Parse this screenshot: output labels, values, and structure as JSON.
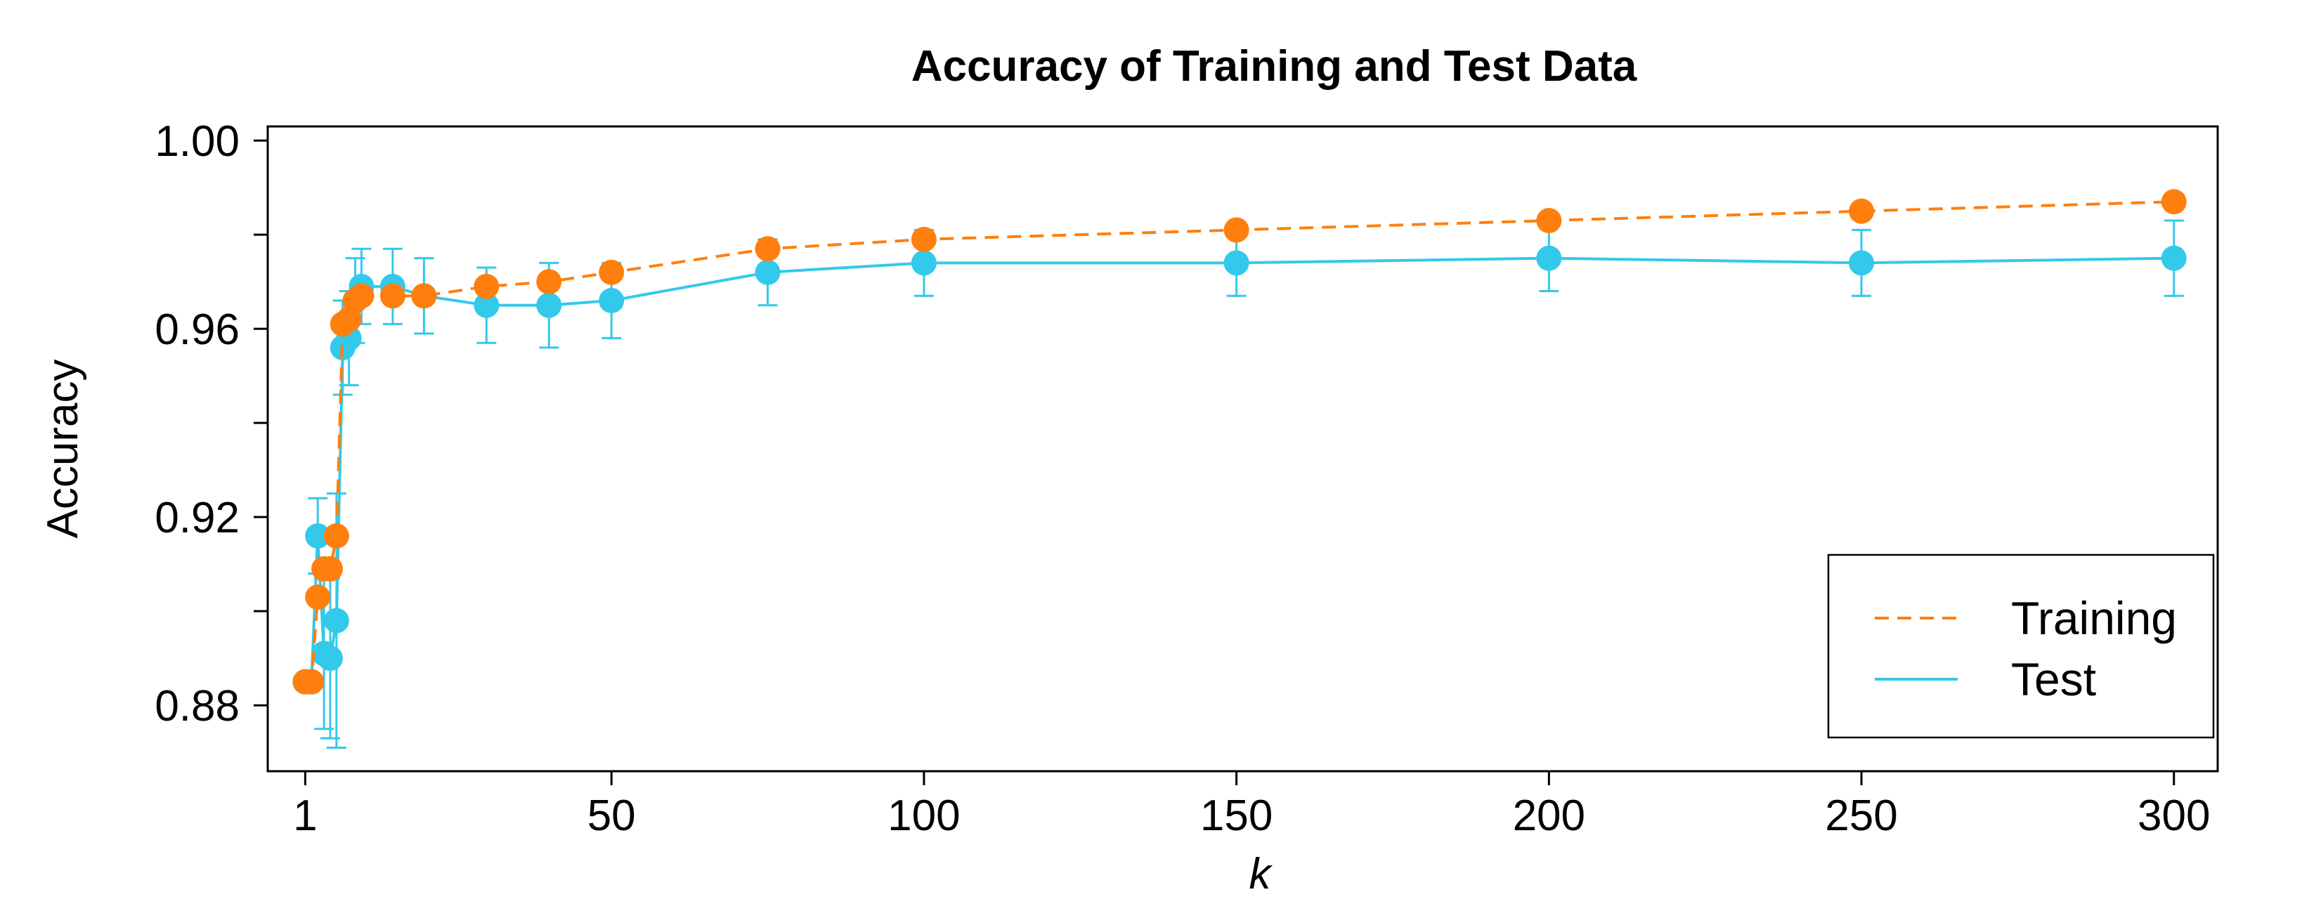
{
  "chart_data": {
    "type": "line",
    "title": "Accuracy of Training and Test Data",
    "xlabel": "k",
    "ylabel": "Accuracy",
    "xlim": [
      -5,
      307
    ],
    "ylim": [
      0.866,
      1.003
    ],
    "xticks": [
      1,
      50,
      100,
      150,
      200,
      250,
      300
    ],
    "xtick_labels": [
      "1",
      "50",
      "100",
      "150",
      "200",
      "250",
      "300"
    ],
    "yticks": [
      0.86,
      0.88,
      0.9,
      0.92,
      0.94,
      0.96,
      0.98,
      1.0
    ],
    "ytick_labels": [
      "",
      "0.88",
      "",
      "0.92",
      "",
      "0.96",
      "",
      "1.00"
    ],
    "legend_position": "bottom-right",
    "series": [
      {
        "name": "Training",
        "color": "#FF7F0E",
        "line_style": "dashed",
        "x": [
          1,
          2,
          3,
          4,
          5,
          6,
          7,
          8,
          9,
          10,
          15,
          20,
          30,
          40,
          50,
          75,
          100,
          150,
          200,
          250,
          300
        ],
        "y": [
          0.885,
          0.885,
          0.903,
          0.909,
          0.909,
          0.916,
          0.961,
          0.962,
          0.966,
          0.967,
          0.967,
          0.967,
          0.969,
          0.97,
          0.972,
          0.977,
          0.979,
          0.981,
          0.983,
          0.985,
          0.987
        ]
      },
      {
        "name": "Test",
        "color": "#33C9EB",
        "line_style": "solid",
        "x": [
          1,
          2,
          3,
          4,
          5,
          6,
          7,
          8,
          9,
          10,
          15,
          20,
          30,
          40,
          50,
          75,
          100,
          150,
          200,
          250,
          300
        ],
        "y": [
          0.885,
          0.885,
          0.916,
          0.891,
          0.89,
          0.898,
          0.956,
          0.958,
          0.966,
          0.969,
          0.969,
          0.967,
          0.965,
          0.965,
          0.966,
          0.972,
          0.974,
          0.974,
          0.975,
          0.974,
          0.975
        ],
        "err": [
          0,
          0,
          0.008,
          0.016,
          0.017,
          0.027,
          0.01,
          0.01,
          0.009,
          0.008,
          0.008,
          0.008,
          0.008,
          0.009,
          0.008,
          0.007,
          0.007,
          0.007,
          0.007,
          0.007,
          0.008
        ]
      }
    ]
  }
}
